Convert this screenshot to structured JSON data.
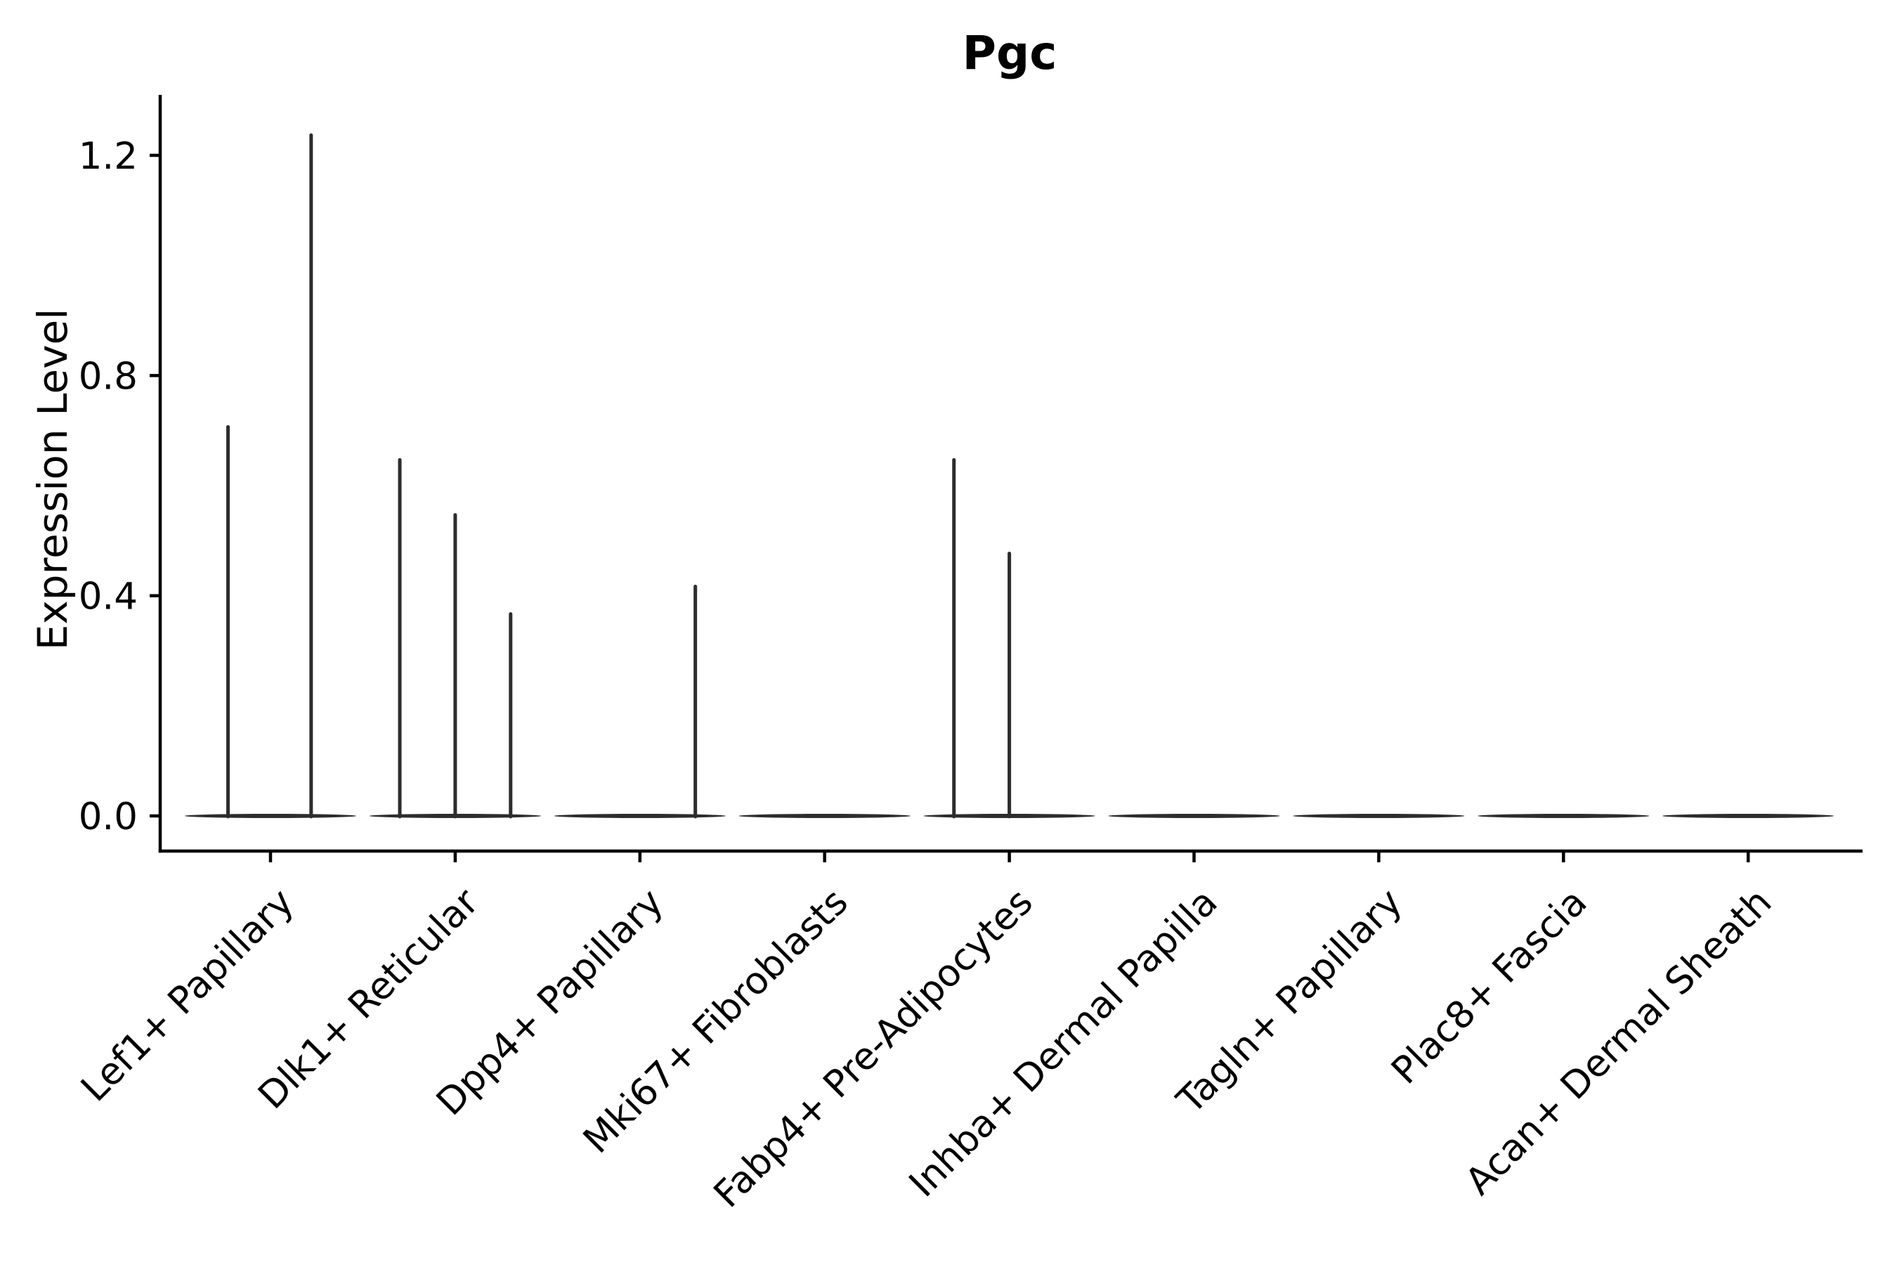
{
  "figure": {
    "background_color": "#ffffff",
    "axis_color": "#000000",
    "violin_color": "#2d2d2d"
  },
  "chart_data": {
    "type": "violin",
    "title": "Pgc",
    "xlabel": "",
    "ylabel": "Expression Level",
    "ylim": [
      0,
      1.31
    ],
    "yticks": [
      0.0,
      0.4,
      0.8,
      1.2
    ],
    "ytick_labels": [
      "0.0",
      "0.4",
      "0.8",
      "1.2"
    ],
    "grid": false,
    "legend": "none",
    "spines": [
      "left",
      "bottom"
    ],
    "categories": [
      "Lef1+ Papillary",
      "Dlk1+ Reticular",
      "Dpp4+ Papillary",
      "Mki67+ Fibroblasts",
      "Fabp4+ Pre-Adipocytes",
      "Inhba+ Dermal Papilla",
      "Tagln+ Papillary",
      "Plac8+ Fascia",
      "Acan+ Dermal Sheath"
    ],
    "violins": [
      {
        "category": "Lef1+ Papillary",
        "baseline_value": 0.0,
        "spikes": [
          {
            "x_offset": -0.23,
            "value": 0.71
          },
          {
            "x_offset": 0.22,
            "value": 1.24
          }
        ]
      },
      {
        "category": "Dlk1+ Reticular",
        "baseline_value": 0.0,
        "spikes": [
          {
            "x_offset": -0.3,
            "value": 0.65
          },
          {
            "x_offset": 0.0,
            "value": 0.55
          },
          {
            "x_offset": 0.3,
            "value": 0.37
          }
        ]
      },
      {
        "category": "Dpp4+ Papillary",
        "baseline_value": 0.0,
        "spikes": [
          {
            "x_offset": 0.3,
            "value": 0.42
          }
        ]
      },
      {
        "category": "Mki67+ Fibroblasts",
        "baseline_value": 0.0,
        "spikes": []
      },
      {
        "category": "Fabp4+ Pre-Adipocytes",
        "baseline_value": 0.0,
        "spikes": [
          {
            "x_offset": -0.3,
            "value": 0.65
          },
          {
            "x_offset": 0.0,
            "value": 0.48
          }
        ]
      },
      {
        "category": "Inhba+ Dermal Papilla",
        "baseline_value": 0.0,
        "spikes": []
      },
      {
        "category": "Tagln+ Papillary",
        "baseline_value": 0.0,
        "spikes": []
      },
      {
        "category": "Plac8+ Fascia",
        "baseline_value": 0.0,
        "spikes": []
      },
      {
        "category": "Acan+ Dermal Sheath",
        "baseline_value": 0.0,
        "spikes": []
      }
    ]
  }
}
